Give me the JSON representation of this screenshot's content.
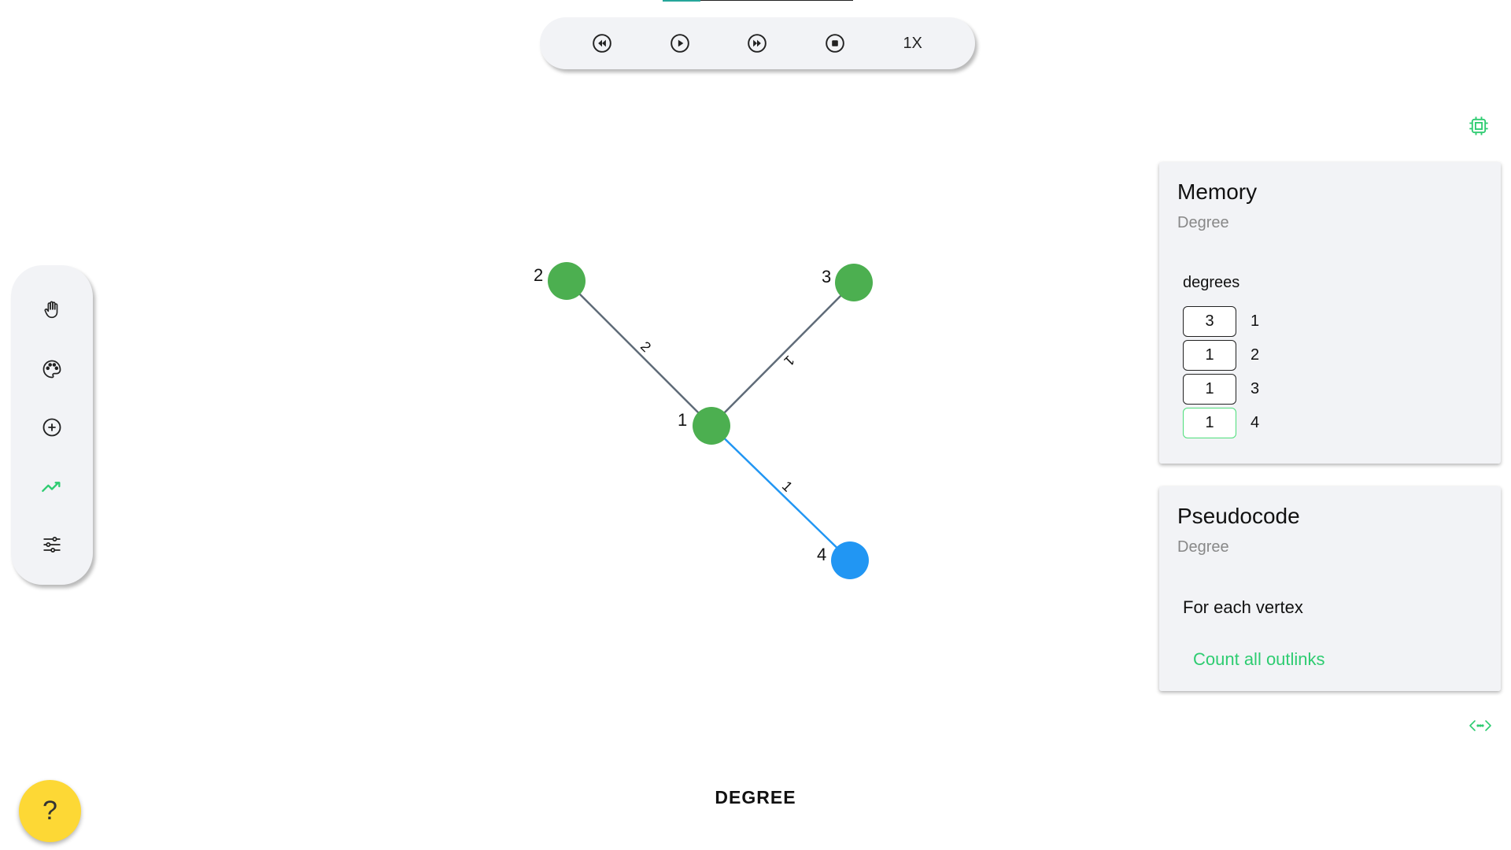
{
  "progress": {
    "fraction": 0.2
  },
  "toolbar": {
    "buttons": [
      {
        "name": "rewind-icon"
      },
      {
        "name": "play-icon"
      },
      {
        "name": "fast-forward-icon"
      },
      {
        "name": "stop-icon"
      }
    ],
    "speed_label": "1X"
  },
  "sidebar": {
    "tools": [
      "hand-icon",
      "palette-icon",
      "add-circle-icon",
      "trend-icon",
      "sliders-icon"
    ],
    "active_tool": "trend-icon"
  },
  "graph": {
    "title": "DEGREE",
    "colors": {
      "visited": "#4caf50",
      "current": "#2196f3",
      "edge": "#5f6b78",
      "active_edge": "#2196f3"
    },
    "nodes": [
      {
        "id": "1",
        "label": "1",
        "state": "visited"
      },
      {
        "id": "2",
        "label": "2",
        "state": "visited"
      },
      {
        "id": "3",
        "label": "3",
        "state": "visited"
      },
      {
        "id": "4",
        "label": "4",
        "state": "current"
      }
    ],
    "edges": [
      {
        "from": "2",
        "to": "1",
        "weight": "2",
        "active": false
      },
      {
        "from": "3",
        "to": "1",
        "weight": "1",
        "active": false
      },
      {
        "from": "1",
        "to": "4",
        "weight": "1",
        "active": true
      }
    ]
  },
  "memory": {
    "title": "Memory",
    "subtitle": "Degree",
    "label": "degrees",
    "rows": [
      {
        "value": "3",
        "index": "1"
      },
      {
        "value": "1",
        "index": "2"
      },
      {
        "value": "1",
        "index": "3"
      },
      {
        "value": "1",
        "index": "4"
      }
    ],
    "active_index": 3
  },
  "pseudocode": {
    "title": "Pseudocode",
    "subtitle": "Degree",
    "lines": [
      {
        "text": "For each vertex",
        "active": false
      },
      {
        "text": "Count all outlinks",
        "active": true
      }
    ],
    "active_color": "#2ecc71"
  },
  "help": {
    "label": "?"
  }
}
